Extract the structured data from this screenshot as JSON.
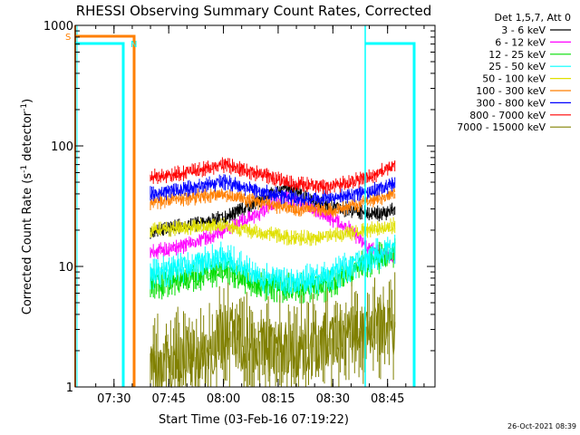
{
  "chart_data": {
    "type": "line",
    "title": "RHESSI Observing Summary Count Rates, Corrected",
    "xlabel": "Start Time (03-Feb-16 07:19:22)",
    "ylabel": "Corrected Count Rate (s",
    "ylabel_sup1": "-1",
    "ylabel_mid": " detector",
    "ylabel_sup2": "-1",
    "ylabel_end": ")",
    "xlim": [
      "07:19:22",
      "08:58:00"
    ],
    "ylim": [
      1,
      1000
    ],
    "yscale": "log",
    "x_ticks": [
      "07:30",
      "07:45",
      "08:00",
      "08:15",
      "08:30",
      "08:45"
    ],
    "y_ticks": [
      "1",
      "10",
      "100",
      "1000"
    ],
    "legend_header": "Det 1,5,7, Att 0",
    "legend_position": "right",
    "footer": "26-Oct-2021 08:39",
    "data_window": [
      "07:40",
      "08:47"
    ],
    "series": [
      {
        "name": "3 - 6 keV",
        "color": "#000000",
        "x": [
          "07:40",
          "07:50",
          "08:00",
          "08:10",
          "08:17",
          "08:25",
          "08:35",
          "08:40",
          "08:47"
        ],
        "values": [
          19,
          22,
          25,
          35,
          46,
          34,
          29,
          27,
          29
        ]
      },
      {
        "name": "6 - 12 keV",
        "color": "#ff00ff",
        "x": [
          "07:40",
          "07:50",
          "08:00",
          "08:10",
          "08:17",
          "08:25",
          "08:35",
          "08:40",
          "08:47"
        ],
        "values": [
          13,
          15,
          20,
          28,
          38,
          30,
          20,
          14,
          12
        ]
      },
      {
        "name": "12 - 25 keV",
        "color": "#00dd00",
        "x": [
          "07:40",
          "07:50",
          "08:00",
          "08:10",
          "08:20",
          "08:30",
          "08:40",
          "08:47"
        ],
        "values": [
          7,
          8,
          9.5,
          7,
          6.5,
          7,
          11,
          13
        ]
      },
      {
        "name": "25 - 50 keV",
        "color": "#00ffff",
        "x": [
          "07:40",
          "07:50",
          "08:00",
          "08:10",
          "08:20",
          "08:30",
          "08:40",
          "08:47"
        ],
        "values": [
          8.5,
          10,
          12,
          8,
          7.5,
          8.5,
          12,
          14
        ]
      },
      {
        "name": "50 - 100 keV",
        "color": "#e0e000",
        "x": [
          "07:40",
          "07:50",
          "08:00",
          "08:10",
          "08:20",
          "08:30",
          "08:40",
          "08:47"
        ],
        "values": [
          20,
          21,
          22,
          19,
          17,
          18,
          20,
          22
        ]
      },
      {
        "name": "100 - 300 keV",
        "color": "#ff7f00",
        "x": [
          "07:40",
          "07:50",
          "08:00",
          "08:10",
          "08:20",
          "08:30",
          "08:40",
          "08:47"
        ],
        "values": [
          34,
          37,
          40,
          34,
          30,
          29,
          35,
          40
        ]
      },
      {
        "name": "300 - 800 keV",
        "color": "#0000ff",
        "x": [
          "07:40",
          "07:50",
          "08:00",
          "08:10",
          "08:20",
          "08:30",
          "08:40",
          "08:47"
        ],
        "values": [
          40,
          44,
          50,
          42,
          36,
          37,
          42,
          48
        ]
      },
      {
        "name": "800 - 7000 keV",
        "color": "#ff0000",
        "x": [
          "07:40",
          "07:50",
          "08:00",
          "08:10",
          "08:20",
          "08:30",
          "08:40",
          "08:47"
        ],
        "values": [
          55,
          60,
          70,
          58,
          48,
          46,
          55,
          70
        ]
      },
      {
        "name": "7000 - 15000 keV",
        "color": "#808000",
        "x": [
          "07:40",
          "07:55",
          "08:00",
          "08:10",
          "08:20",
          "08:30",
          "08:40",
          "08:47"
        ],
        "values": [
          1.5,
          1.8,
          2.8,
          2.2,
          2.0,
          2.4,
          3.0,
          3.2
        ]
      }
    ],
    "flags": [
      {
        "label": "S",
        "color": "#ff7f00"
      },
      {
        "label": "N",
        "color": "#00ffff"
      }
    ]
  }
}
